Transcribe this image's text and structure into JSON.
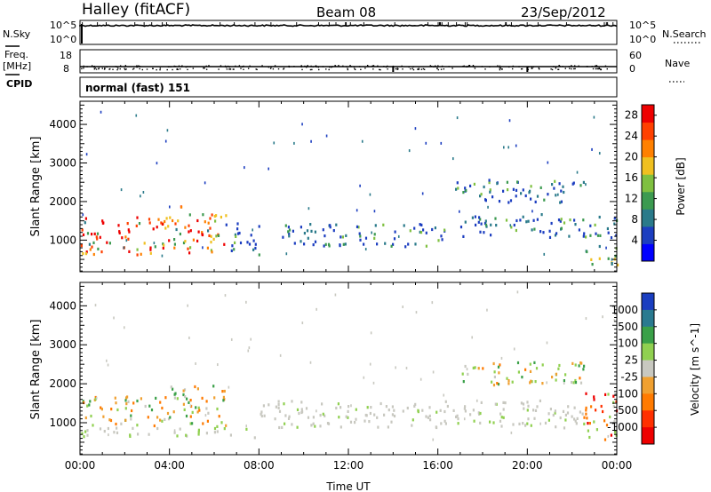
{
  "header": {
    "station": "Halley (fitACF)",
    "beam": "Beam 08",
    "date": "23/Sep/2012"
  },
  "side_labels": {
    "nsky": "N.Sky",
    "freq": "Freq.",
    "mhz": "[MHz]",
    "cpid": "CPID",
    "nsearch": "N.Search",
    "nave": "Nave"
  },
  "cpid_text": "normal (fast) 151",
  "chart_data": [
    {
      "type": "line",
      "panel": "noise",
      "series": [
        {
          "name": "N.Sky",
          "approx_level": "10^5"
        },
        {
          "name": "N.Search",
          "approx_level": "10^5"
        }
      ],
      "ytick_labels_left": [
        "10^5",
        "10^0"
      ],
      "ytick_labels_right": [
        "10^5",
        "10^0"
      ]
    },
    {
      "type": "scatter",
      "panel": "frequency",
      "series": [
        {
          "name": "Freq.",
          "units": "MHz",
          "approx_value": 10.5
        },
        {
          "name": "Nave",
          "approx_value": 17
        }
      ],
      "ytick_labels_left": [
        "18",
        "8"
      ],
      "ytick_labels_right": [
        "60",
        "0"
      ],
      "ylim_left": [
        8,
        18
      ],
      "ylim_right": [
        0,
        60
      ],
      "dips_at_hours": [
        14,
        20
      ]
    },
    {
      "type": "heatmap",
      "panel": "power",
      "xlabel": "",
      "ylabel": "Slant Range [km]",
      "xlim": [
        0,
        24
      ],
      "ylim": [
        180,
        4600
      ],
      "yticks": [
        1000,
        2000,
        3000,
        4000
      ],
      "colorbar_label": "Power [dB]",
      "colorbar_ticks": [
        4,
        8,
        12,
        16,
        20,
        24,
        28
      ],
      "colorbar_range": [
        0,
        30
      ],
      "colorbar_colors": [
        "#0000ff",
        "#1c3ec0",
        "#2a7a8a",
        "#3c9a50",
        "#7fc040",
        "#f0c020",
        "#ff8000",
        "#ff4000",
        "#ee0000"
      ],
      "regions": [
        {
          "t0": 0.0,
          "t1": 4.0,
          "r0": 650,
          "r1": 1650,
          "level": "high"
        },
        {
          "t0": 4.0,
          "t1": 6.5,
          "r0": 700,
          "r1": 1900,
          "level": "high"
        },
        {
          "t0": 6.5,
          "t1": 8.0,
          "r0": 650,
          "r1": 1500,
          "level": "low"
        },
        {
          "t0": 9.0,
          "t1": 16.5,
          "r0": 850,
          "r1": 1450,
          "level": "low"
        },
        {
          "t0": 16.7,
          "t1": 22.5,
          "r0": 2000,
          "r1": 2600,
          "level": "low"
        },
        {
          "t0": 17.0,
          "t1": 24.0,
          "r0": 1100,
          "r1": 1700,
          "level": "low"
        },
        {
          "t0": 22.5,
          "t1": 24.0,
          "r0": 350,
          "r1": 900,
          "level": "mid"
        }
      ]
    },
    {
      "type": "heatmap",
      "panel": "velocity",
      "xlabel": "Time UT",
      "ylabel": "Slant Range [km]",
      "xlim": [
        0,
        24
      ],
      "ylim": [
        180,
        4600
      ],
      "yticks": [
        1000,
        2000,
        3000,
        4000
      ],
      "xtick_labels": [
        "00:00",
        "04:00",
        "08:00",
        "12:00",
        "16:00",
        "20:00",
        "00:00"
      ],
      "colorbar_label": "Velocity [m s^-1]",
      "colorbar_ticks": [
        1000,
        500,
        100,
        25,
        -25,
        -100,
        -500,
        -1000
      ],
      "colorbar_colors": [
        "#1a3ec0",
        "#2a7a90",
        "#3aa048",
        "#90d050",
        "#c8c8c0",
        "#f0a030",
        "#ff7a00",
        "#ff3000",
        "#ee0000"
      ],
      "regions": [
        {
          "t0": 0.0,
          "t1": 4.0,
          "r0": 900,
          "r1": 1700,
          "dominant": "negative-moderate"
        },
        {
          "t0": 4.0,
          "t1": 6.5,
          "r0": 900,
          "r1": 2000,
          "dominant": "negative-moderate"
        },
        {
          "t0": 0.0,
          "t1": 8.0,
          "r0": 650,
          "r1": 900,
          "dominant": "ground-scatter"
        },
        {
          "t0": 8.0,
          "t1": 22.5,
          "r0": 900,
          "r1": 1600,
          "dominant": "ground-scatter"
        },
        {
          "t0": 16.8,
          "t1": 22.5,
          "r0": 2000,
          "r1": 2600,
          "dominant": "mixed"
        },
        {
          "t0": 22.5,
          "t1": 24.0,
          "r0": 500,
          "r1": 1800,
          "dominant": "negative-strong"
        }
      ]
    }
  ]
}
